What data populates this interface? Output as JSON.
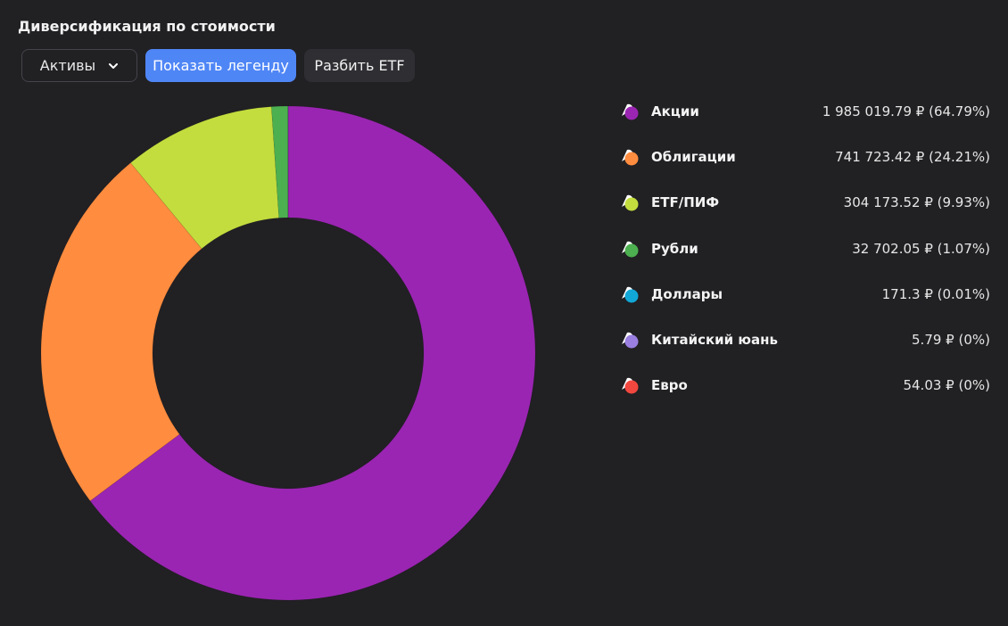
{
  "header": {
    "title": "Диверсификация по стоимости"
  },
  "toolbar": {
    "select_label": "Активы",
    "legend_button": "Показать легенду",
    "split_button": "Разбить ETF"
  },
  "legend": [
    {
      "label": "Акции",
      "value": "1 985 019.79 ₽ (64.79%)",
      "color": "#9b25b3"
    },
    {
      "label": "Облигации",
      "value": "741 723.42 ₽ (24.21%)",
      "color": "#ff8c3f"
    },
    {
      "label": "ETF/ПИФ",
      "value": "304 173.52 ₽ (9.93%)",
      "color": "#c3dd3e"
    },
    {
      "label": "Рубли",
      "value": "32 702.05 ₽ (1.07%)",
      "color": "#4caf50"
    },
    {
      "label": "Доллары",
      "value": "171.3 ₽ (0.01%)",
      "color": "#11a7d6"
    },
    {
      "label": "Китайский юань",
      "value": "5.79 ₽ (0%)",
      "color": "#9a7fe0"
    },
    {
      "label": "Евро",
      "value": "54.03 ₽ (0%)",
      "color": "#f2473f"
    }
  ],
  "chart_data": {
    "type": "pie",
    "donut": true,
    "title": "Диверсификация по стоимости",
    "categories": [
      "Акции",
      "Облигации",
      "ETF/ПИФ",
      "Рубли",
      "Доллары",
      "Китайский юань",
      "Евро"
    ],
    "values": [
      1985019.79,
      741723.42,
      304173.52,
      32702.05,
      171.3,
      5.79,
      54.03
    ],
    "percent_labels": [
      "64.79%",
      "24.21%",
      "9.93%",
      "1.07%",
      "0.01%",
      "0%",
      "0%"
    ],
    "colors": [
      "#9b25b3",
      "#ff8c3f",
      "#c3dd3e",
      "#4caf50",
      "#11a7d6",
      "#9a7fe0",
      "#f2473f"
    ],
    "legend_position": "right"
  }
}
